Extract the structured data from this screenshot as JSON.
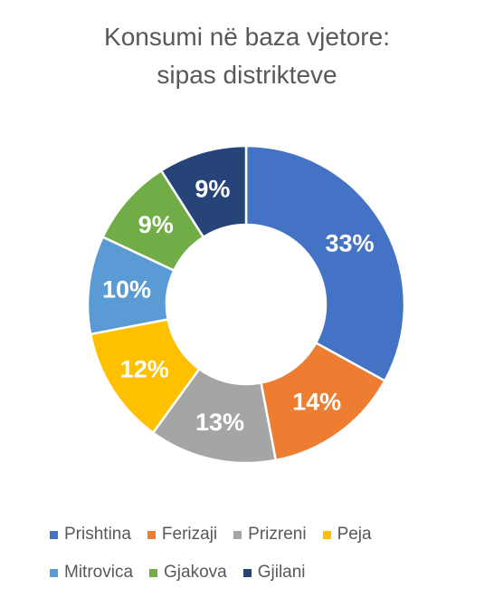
{
  "chart_data": {
    "type": "pie",
    "variant": "donut",
    "title": [
      "Konsumi në baza vjetore:",
      "sipas distrikteve"
    ],
    "categories": [
      "Prishtina",
      "Ferizaji",
      "Prizreni",
      "Peja",
      "Mitrovica",
      "Gjakova",
      "Gjilani"
    ],
    "values": [
      33,
      14,
      13,
      12,
      10,
      9,
      9
    ],
    "data_labels": [
      "33%",
      "14%",
      "13%",
      "12%",
      "10%",
      "9%",
      "9%"
    ],
    "colors": [
      "#4472C4",
      "#ED7D31",
      "#A5A5A5",
      "#FFC000",
      "#5B9BD5",
      "#70AD47",
      "#264478"
    ],
    "legend_position": "bottom",
    "legend_rows": [
      [
        "Prishtina",
        "Ferizaji",
        "Prizreni",
        "Peja"
      ],
      [
        "Mitrovica",
        "Gjakova",
        "Gjilani"
      ]
    ]
  }
}
